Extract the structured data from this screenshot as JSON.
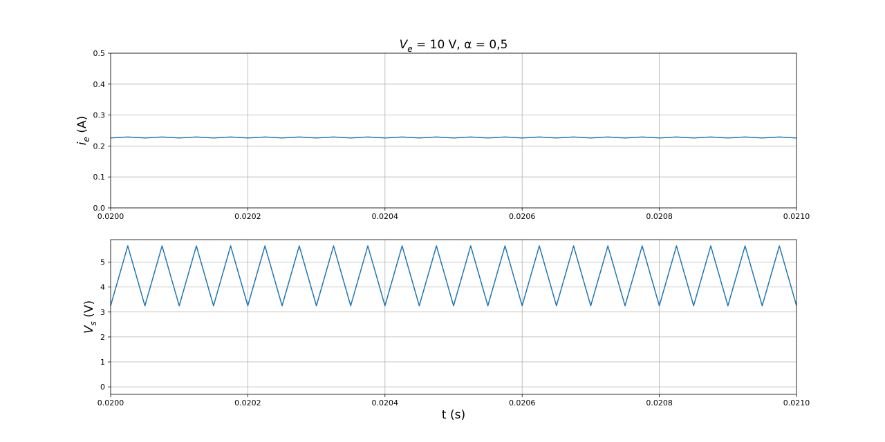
{
  "figure": {
    "title_main": "V",
    "title_sub": "e",
    "title_rest": " = 10 V,  α = 0,5"
  },
  "chart_data": [
    {
      "type": "line",
      "title": "V_e = 10 V, α = 0,5",
      "xlabel": "",
      "ylabel_main": "i",
      "ylabel_sub": "e",
      "ylabel_unit": " (A)",
      "xlim": [
        0.02,
        0.021
      ],
      "ylim": [
        0.0,
        0.5
      ],
      "xticks": [
        "0.0200",
        "0.0202",
        "0.0204",
        "0.0206",
        "0.0208",
        "0.0210"
      ],
      "yticks": [
        "0.0",
        "0.1",
        "0.2",
        "0.3",
        "0.4",
        "0.5"
      ],
      "grid": true,
      "color": "#1f77b4",
      "series": [
        {
          "x": [
            0.02,
            0.020025,
            0.02005,
            0.020075,
            0.0201,
            0.020125,
            0.02015,
            0.020175,
            0.0202,
            0.020225,
            0.02025,
            0.020275,
            0.0203,
            0.020325,
            0.02035,
            0.020375,
            0.0204,
            0.020425,
            0.02045,
            0.020475,
            0.0205,
            0.020525,
            0.02055,
            0.020575,
            0.0206,
            0.020625,
            0.02065,
            0.020675,
            0.0207,
            0.020725,
            0.02075,
            0.020775,
            0.0208,
            0.020825,
            0.02085,
            0.020875,
            0.0209,
            0.020925,
            0.02095,
            0.020975,
            0.021
          ],
          "y": [
            0.226,
            0.229,
            0.226,
            0.229,
            0.226,
            0.229,
            0.226,
            0.229,
            0.226,
            0.229,
            0.226,
            0.229,
            0.226,
            0.229,
            0.226,
            0.229,
            0.226,
            0.229,
            0.226,
            0.229,
            0.226,
            0.229,
            0.226,
            0.229,
            0.226,
            0.229,
            0.226,
            0.229,
            0.226,
            0.229,
            0.226,
            0.229,
            0.226,
            0.229,
            0.226,
            0.229,
            0.226,
            0.229,
            0.226,
            0.229,
            0.226
          ]
        }
      ]
    },
    {
      "type": "line",
      "title": "",
      "xlabel": "t (s)",
      "ylabel_main": "V",
      "ylabel_sub": "s",
      "ylabel_unit": " (V)",
      "xlim": [
        0.02,
        0.021
      ],
      "ylim": [
        -0.3,
        5.9
      ],
      "xticks": [
        "0.0200",
        "0.0202",
        "0.0204",
        "0.0206",
        "0.0208",
        "0.0210"
      ],
      "yticks": [
        "0",
        "1",
        "2",
        "3",
        "4",
        "5"
      ],
      "grid": true,
      "color": "#1f77b4",
      "series": [
        {
          "x": [
            0.02,
            0.020025,
            0.02005,
            0.020075,
            0.0201,
            0.020125,
            0.02015,
            0.020175,
            0.0202,
            0.020225,
            0.02025,
            0.020275,
            0.0203,
            0.020325,
            0.02035,
            0.020375,
            0.0204,
            0.020425,
            0.02045,
            0.020475,
            0.0205,
            0.020525,
            0.02055,
            0.020575,
            0.0206,
            0.020625,
            0.02065,
            0.020675,
            0.0207,
            0.020725,
            0.02075,
            0.020775,
            0.0208,
            0.020825,
            0.02085,
            0.020875,
            0.0209,
            0.020925,
            0.02095,
            0.020975,
            0.021
          ],
          "y": [
            3.25,
            5.65,
            3.25,
            5.65,
            3.25,
            5.65,
            3.25,
            5.65,
            3.25,
            5.65,
            3.25,
            5.65,
            3.25,
            5.65,
            3.25,
            5.65,
            3.25,
            5.65,
            3.25,
            5.65,
            3.25,
            5.65,
            3.25,
            5.65,
            3.25,
            5.65,
            3.25,
            5.65,
            3.25,
            5.65,
            3.25,
            5.65,
            3.25,
            5.65,
            3.25,
            5.65,
            3.25,
            5.65,
            3.25,
            5.65,
            3.25
          ]
        }
      ]
    }
  ]
}
